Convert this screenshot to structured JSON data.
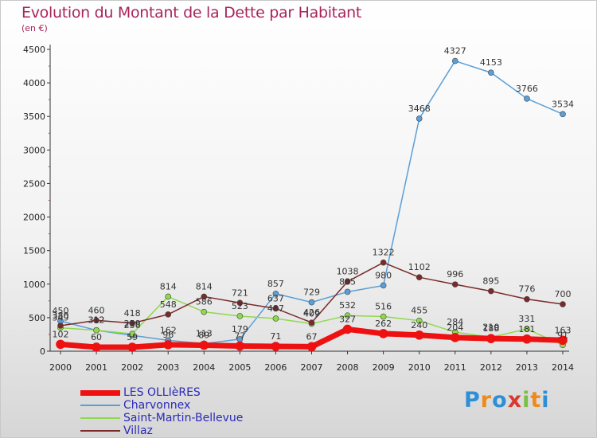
{
  "title": "Evolution du Montant de la Dette par Habitant",
  "subtitle": "(en €)",
  "logo": {
    "text": "Proxiti",
    "letters": [
      "P",
      "r",
      "o",
      "x",
      "i",
      "t",
      "i"
    ],
    "colors": [
      "#2e8fd6",
      "#ef8a1a",
      "#2e8fd6",
      "#d93a2e",
      "#7ac142",
      "#ef8a1a",
      "#2e8fd6"
    ]
  },
  "chart_data": {
    "type": "line",
    "title": "Evolution du Montant de la Dette par Habitant",
    "ylabel": "(en €)",
    "x": [
      2000,
      2001,
      2002,
      2003,
      2004,
      2005,
      2006,
      2007,
      2008,
      2009,
      2010,
      2011,
      2012,
      2013,
      2014
    ],
    "ylim": [
      0,
      4500
    ],
    "yticks": [
      0,
      500,
      1000,
      1500,
      2000,
      2500,
      3000,
      3500,
      4000,
      4500
    ],
    "grid": false,
    "legend_position": "bottom-left",
    "series": [
      {
        "name": "LES OLLIèRES",
        "color": "#ee1111",
        "width": 7,
        "values": [
          102,
          60,
          59,
          96,
          89,
          77,
          71,
          67,
          327,
          262,
          240,
          204,
          188,
          181,
          163
        ],
        "labels": [
          "102",
          "60",
          "59",
          "96",
          "89",
          "77",
          "71",
          "67",
          "327",
          "262",
          "240",
          "204",
          "188",
          "181",
          "163"
        ]
      },
      {
        "name": "Charvonnex",
        "color": "#5b9fd6",
        "width": 1.5,
        "values": [
          450,
          312,
          236,
          162,
          113,
          179,
          857,
          729,
          885,
          980,
          3468,
          4327,
          4153,
          3766,
          3534
        ],
        "labels": [
          "450",
          "312",
          "236",
          "162",
          "113",
          "179",
          "857",
          "729",
          "885",
          "980",
          "3468",
          "4327",
          "4153",
          "3766",
          "3534"
        ]
      },
      {
        "name": "Saint-Martin-Bellevue",
        "color": "#8ed94d",
        "width": 1.5,
        "values": [
          349,
          312,
          259,
          814,
          586,
          523,
          487,
          409,
          532,
          516,
          455,
          284,
          210,
          331,
          91
        ],
        "labels": [
          "349",
          "312",
          "259",
          "814",
          "586",
          "523",
          "487",
          "409",
          "532",
          "516",
          "455",
          "284",
          "210",
          "331",
          "91"
        ]
      },
      {
        "name": "Villaz",
        "color": "#7a2a2a",
        "width": 1.5,
        "values": [
          380,
          460,
          418,
          548,
          814,
          721,
          637,
          426,
          1038,
          1322,
          1102,
          996,
          895,
          776,
          700
        ],
        "labels": [
          "380",
          "460",
          "418",
          "548",
          "814",
          "721",
          "637",
          "426",
          "1038",
          "1322",
          "1102",
          "996",
          "895",
          "776",
          "700"
        ]
      }
    ]
  }
}
